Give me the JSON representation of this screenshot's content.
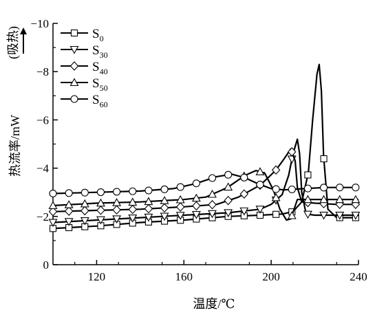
{
  "chart_data": {
    "type": "line",
    "title": "",
    "xlabel": "温度/℃",
    "ylabel": "热流率/mW",
    "endo_label": "(吸热)",
    "xlim": [
      100,
      240
    ],
    "ylim": [
      0,
      -10
    ],
    "y_axis_inverted": true,
    "x_ticks": [
      120,
      160,
      200,
      240
    ],
    "y_ticks": [
      0,
      -2,
      -4,
      -6,
      -8,
      -10
    ],
    "x_tick_labels": [
      "120",
      "160",
      "200",
      "240"
    ],
    "y_tick_labels": [
      "0",
      "−2",
      "−4",
      "−6",
      "−8",
      "−10"
    ],
    "grid": false,
    "legend_position": "top-left",
    "line_color": "#000000",
    "series": [
      {
        "name": "S0",
        "base": "S",
        "sub": "0",
        "marker": "square",
        "points": [
          [
            100,
            -1.5
          ],
          [
            120,
            -1.6
          ],
          [
            140,
            -1.75
          ],
          [
            160,
            -1.85
          ],
          [
            180,
            -2.0
          ],
          [
            195,
            -2.05
          ],
          [
            205,
            -2.1
          ],
          [
            210,
            -2.2
          ],
          [
            214,
            -2.6
          ],
          [
            217,
            -3.8
          ],
          [
            219,
            -6.0
          ],
          [
            221,
            -7.9
          ],
          [
            222,
            -8.3
          ],
          [
            223,
            -7.2
          ],
          [
            224,
            -4.5
          ],
          [
            226,
            -2.3
          ],
          [
            230,
            -1.95
          ],
          [
            240,
            -1.95
          ]
        ]
      },
      {
        "name": "S30",
        "base": "S",
        "sub": "30",
        "marker": "triangle-down",
        "points": [
          [
            100,
            -1.75
          ],
          [
            120,
            -1.85
          ],
          [
            140,
            -1.95
          ],
          [
            160,
            -2.05
          ],
          [
            180,
            -2.15
          ],
          [
            195,
            -2.3
          ],
          [
            200,
            -2.5
          ],
          [
            205,
            -2.9
          ],
          [
            208,
            -3.7
          ],
          [
            210,
            -4.6
          ],
          [
            212,
            -5.2
          ],
          [
            213,
            -4.6
          ],
          [
            214,
            -3.0
          ],
          [
            216,
            -2.1
          ],
          [
            220,
            -2.05
          ],
          [
            230,
            -2.05
          ],
          [
            240,
            -2.05
          ]
        ]
      },
      {
        "name": "S40",
        "base": "S",
        "sub": "40",
        "marker": "diamond",
        "points": [
          [
            100,
            -2.2
          ],
          [
            120,
            -2.25
          ],
          [
            140,
            -2.3
          ],
          [
            160,
            -2.4
          ],
          [
            175,
            -2.5
          ],
          [
            185,
            -2.8
          ],
          [
            195,
            -3.3
          ],
          [
            202,
            -3.9
          ],
          [
            206,
            -4.4
          ],
          [
            209,
            -4.8
          ],
          [
            211,
            -4.3
          ],
          [
            212,
            -3.2
          ],
          [
            214,
            -2.6
          ],
          [
            220,
            -2.55
          ],
          [
            230,
            -2.5
          ],
          [
            240,
            -2.5
          ]
        ]
      },
      {
        "name": "S50",
        "base": "S",
        "sub": "50",
        "marker": "triangle-up",
        "points": [
          [
            100,
            -2.45
          ],
          [
            120,
            -2.55
          ],
          [
            140,
            -2.6
          ],
          [
            160,
            -2.7
          ],
          [
            170,
            -2.8
          ],
          [
            180,
            -3.2
          ],
          [
            188,
            -3.7
          ],
          [
            193,
            -3.9
          ],
          [
            197,
            -3.8
          ],
          [
            201,
            -3.1
          ],
          [
            204,
            -2.3
          ],
          [
            207,
            -1.85
          ],
          [
            209,
            -1.9
          ],
          [
            212,
            -2.7
          ],
          [
            220,
            -2.7
          ],
          [
            230,
            -2.7
          ],
          [
            240,
            -2.7
          ]
        ]
      },
      {
        "name": "S60",
        "base": "S",
        "sub": "60",
        "marker": "circle",
        "points": [
          [
            100,
            -2.95
          ],
          [
            120,
            -3.0
          ],
          [
            140,
            -3.05
          ],
          [
            155,
            -3.15
          ],
          [
            165,
            -3.35
          ],
          [
            175,
            -3.65
          ],
          [
            182,
            -3.75
          ],
          [
            188,
            -3.6
          ],
          [
            194,
            -3.35
          ],
          [
            200,
            -3.15
          ],
          [
            206,
            -3.1
          ],
          [
            215,
            -3.15
          ],
          [
            225,
            -3.2
          ],
          [
            240,
            -3.2
          ]
        ]
      }
    ]
  }
}
